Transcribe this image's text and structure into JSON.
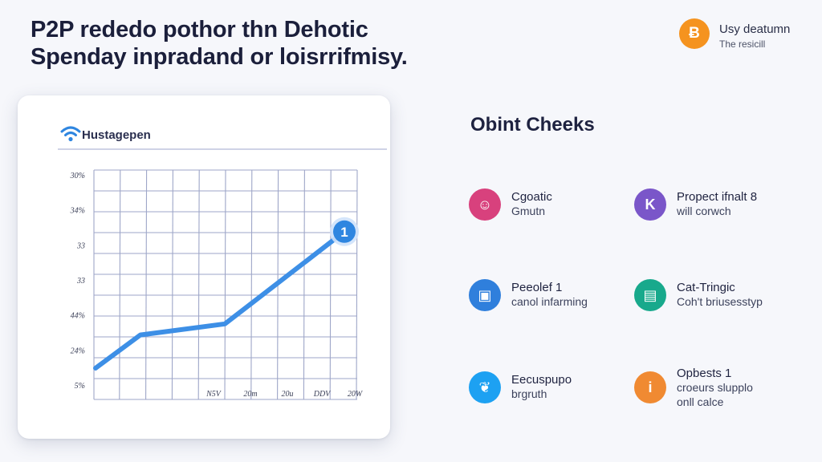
{
  "headline": {
    "line1": "P2P rededo pothor thn Dehotic",
    "line2": "Spenday inpradand or loisrrifmisy."
  },
  "badge": {
    "icon": "bitcoin-icon",
    "symbol": "Ƀ",
    "title": "Usy deatumn",
    "subtitle": "The resicill",
    "color": "#f5931f"
  },
  "chart_card": {
    "title": "Hustagepen",
    "icon": "wifi-icon",
    "marker_label": "1"
  },
  "chart_data": {
    "type": "line",
    "title": "Hustagepen",
    "y_tick_labels": [
      "30%",
      "34%",
      "33",
      "33",
      "44%",
      "24%",
      "5%"
    ],
    "x_tick_labels": [
      "N5V",
      "20m",
      "20u",
      "DDV",
      "20W"
    ],
    "series": [
      {
        "values": [
          0.0,
          0.18,
          0.24,
          0.74
        ]
      }
    ],
    "x_positions": [
      0.0,
      0.18,
      0.52,
      1.0
    ],
    "ylim": [
      0,
      1
    ],
    "grid": true,
    "line_color": "#3d8fe6"
  },
  "cards_section": {
    "heading": "Obint Cheeks",
    "items": [
      {
        "icon": "user-icon",
        "symbol": "☺",
        "color": "#d8417d",
        "title": "Cgoatic",
        "line2": "Gmutn",
        "line3": ""
      },
      {
        "icon": "k-icon",
        "symbol": "K",
        "color": "#7a56c9",
        "title": "Propect ifnalt 8",
        "line2": "will corwch",
        "line3": ""
      },
      {
        "icon": "card-icon",
        "symbol": "▣",
        "color": "#2f7fdc",
        "title": "Peeolef 1",
        "line2": "canol infarming",
        "line3": ""
      },
      {
        "icon": "book-icon",
        "symbol": "▤",
        "color": "#18a98c",
        "title": "Cat-Tringic",
        "line2": "Coh't briusesstyp",
        "line3": ""
      },
      {
        "icon": "twitter-icon",
        "symbol": "❦",
        "color": "#1da1f2",
        "title": "Eecuspupo",
        "line2": "brgruth",
        "line3": ""
      },
      {
        "icon": "info-icon",
        "symbol": "i",
        "color": "#f08a32",
        "title": "Opbests 1",
        "line2": "croeurs slupplo",
        "line3": "onll calce"
      }
    ]
  }
}
